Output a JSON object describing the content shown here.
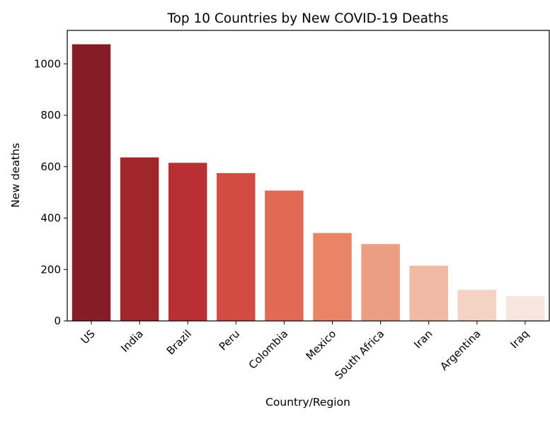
{
  "chart_data": {
    "type": "bar",
    "title": "Top 10 Countries by New COVID-19 Deaths",
    "xlabel": "Country/Region",
    "ylabel": "New deaths",
    "categories": [
      "US",
      "India",
      "Brazil",
      "Peru",
      "Colombia",
      "Mexico",
      "South Africa",
      "Iran",
      "Argentina",
      "Iraq"
    ],
    "values": [
      1076,
      636,
      615,
      575,
      507,
      342,
      299,
      215,
      121,
      96
    ],
    "colors": [
      "#861c25",
      "#a1262c",
      "#ba2f33",
      "#d24c44",
      "#e16a54",
      "#e98467",
      "#ec9e85",
      "#f0baa5",
      "#f4d2c4",
      "#f7e6de"
    ],
    "ylim": [
      0,
      1130
    ],
    "yticks": [
      0,
      200,
      400,
      600,
      800,
      1000
    ],
    "grid": false,
    "legend": "none"
  }
}
